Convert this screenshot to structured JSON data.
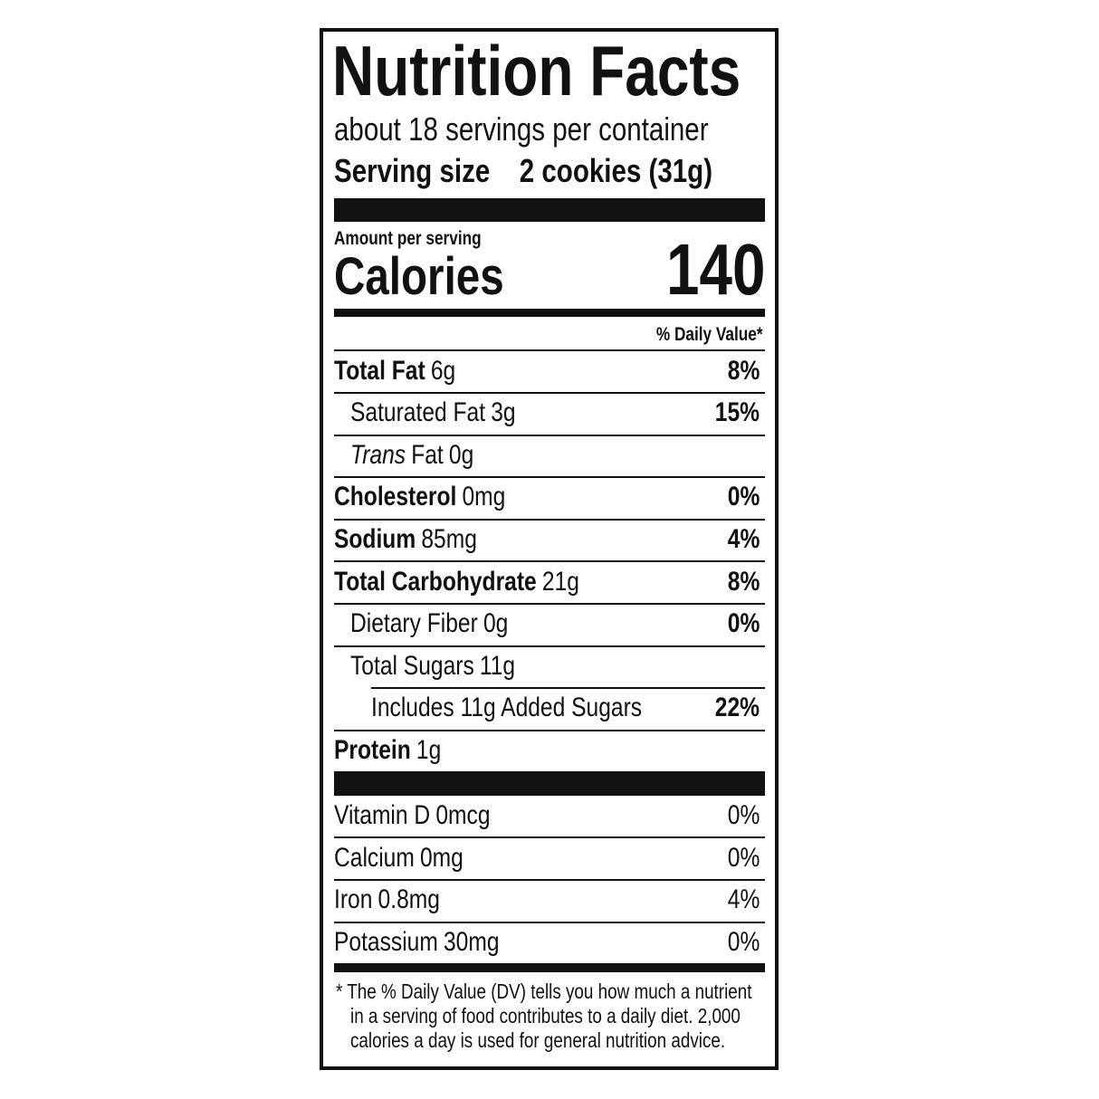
{
  "title": "Nutrition Facts",
  "servings": "about 18 servings per container",
  "serving_size": {
    "label": "Serving size",
    "value": "2 cookies (31g)"
  },
  "amount_per_serving": "Amount per serving",
  "calories": {
    "label": "Calories",
    "value": 140
  },
  "daily_value_header": "% Daily Value*",
  "nutrients": [
    {
      "name": "Total Fat",
      "amount": "6g",
      "dv": "8%",
      "sub": [
        {
          "name": "Saturated Fat",
          "amount": "3g",
          "dv": "15%"
        },
        {
          "name_italic": "Trans",
          "name": "Fat",
          "amount": "0g"
        }
      ]
    },
    {
      "name": "Cholesterol",
      "amount": "0mg",
      "dv": "0%"
    },
    {
      "name": "Sodium",
      "amount": "85mg",
      "dv": "4%"
    },
    {
      "name": "Total Carbohydrate",
      "amount": "21g",
      "dv": "8%",
      "sub": [
        {
          "name": "Dietary Fiber",
          "amount": "0g",
          "dv": "0%"
        },
        {
          "name": "Total Sugars",
          "amount": "11g",
          "sub": [
            {
              "name": "Includes 11g Added Sugars",
              "dv": "22%"
            }
          ]
        }
      ]
    },
    {
      "name": "Protein",
      "amount": "1g"
    }
  ],
  "vitamins": [
    {
      "name": "Vitamin D",
      "amount": "0mcg",
      "dv": "0%"
    },
    {
      "name": "Calcium",
      "amount": "0mg",
      "dv": "0%"
    },
    {
      "name": "Iron",
      "amount": "0.8mg",
      "dv": "4%"
    },
    {
      "name": "Potassium",
      "amount": "30mg",
      "dv": "0%"
    }
  ],
  "footnote": [
    "* The % Daily Value (DV) tells you how much a nutrient",
    "in a serving of food contributes to a daily diet. 2,000",
    "calories a day is used for general nutrition advice."
  ]
}
